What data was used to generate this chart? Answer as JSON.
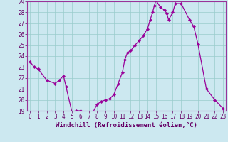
{
  "xlabel": "Windchill (Refroidissement éolien,°C)",
  "hours": [
    0,
    0.5,
    1,
    2,
    3,
    3.5,
    4,
    4.3,
    5,
    5.5,
    6,
    6.5,
    7,
    7.5,
    8,
    8.5,
    9,
    9.5,
    10,
    10.5,
    11,
    11.3,
    11.6,
    12,
    12.5,
    13,
    13.5,
    14,
    14.3,
    14.6,
    14.8,
    15,
    15.5,
    16,
    16.3,
    16.5,
    17,
    17.3,
    18,
    19,
    19.5,
    20,
    21,
    22,
    23
  ],
  "values": [
    23.5,
    23.0,
    22.8,
    21.8,
    21.5,
    21.8,
    22.2,
    21.2,
    18.9,
    19.0,
    19.0,
    18.9,
    18.8,
    18.85,
    19.6,
    19.85,
    20.0,
    20.1,
    20.5,
    21.5,
    22.5,
    23.7,
    24.3,
    24.5,
    25.0,
    25.4,
    25.9,
    26.5,
    27.3,
    28.0,
    28.6,
    29.1,
    28.5,
    28.2,
    27.9,
    27.3,
    28.0,
    28.8,
    28.8,
    27.3,
    26.7,
    25.1,
    21.0,
    20.0,
    19.2
  ],
  "ylim": [
    19,
    29
  ],
  "yticks": [
    19,
    20,
    21,
    22,
    23,
    24,
    25,
    26,
    27,
    28,
    29
  ],
  "xticks": [
    0,
    1,
    2,
    3,
    4,
    5,
    6,
    7,
    8,
    9,
    10,
    11,
    12,
    13,
    14,
    15,
    16,
    17,
    18,
    19,
    20,
    21,
    22,
    23
  ],
  "xlim": [
    -0.3,
    23.3
  ],
  "line_color": "#990099",
  "marker_color": "#990099",
  "bg_color": "#cce8f0",
  "plot_bg": "#cce8f0",
  "grid_color": "#99cccc",
  "axis_color": "#993399",
  "label_color": "#660066",
  "tick_color": "#660066",
  "marker_size": 2.2,
  "line_width": 0.9,
  "xlabel_fontsize": 6.5,
  "tick_fontsize": 5.5
}
